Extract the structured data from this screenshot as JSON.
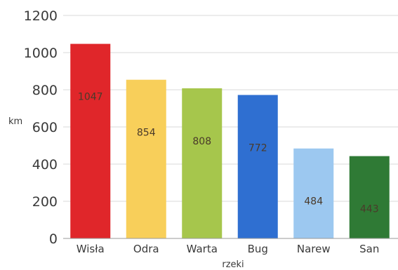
{
  "chart_data": {
    "type": "bar",
    "categories": [
      "Wisła",
      "Odra",
      "Warta",
      "Bug",
      "Narew",
      "San"
    ],
    "values": [
      1047,
      854,
      808,
      772,
      484,
      443
    ],
    "value_labels": [
      "1047",
      "854",
      "808",
      "772",
      "484",
      "443"
    ],
    "colors": [
      "#e0262a",
      "#f8cf5a",
      "#a6c64c",
      "#2f6fd1",
      "#9cc8f0",
      "#2f7a35"
    ],
    "xlabel": "rzeki",
    "ylabel": "km",
    "ylim": [
      0,
      1200
    ],
    "yticks": [
      "0",
      "200",
      "400",
      "600",
      "800",
      "1000",
      "1200"
    ],
    "grid": true
  }
}
